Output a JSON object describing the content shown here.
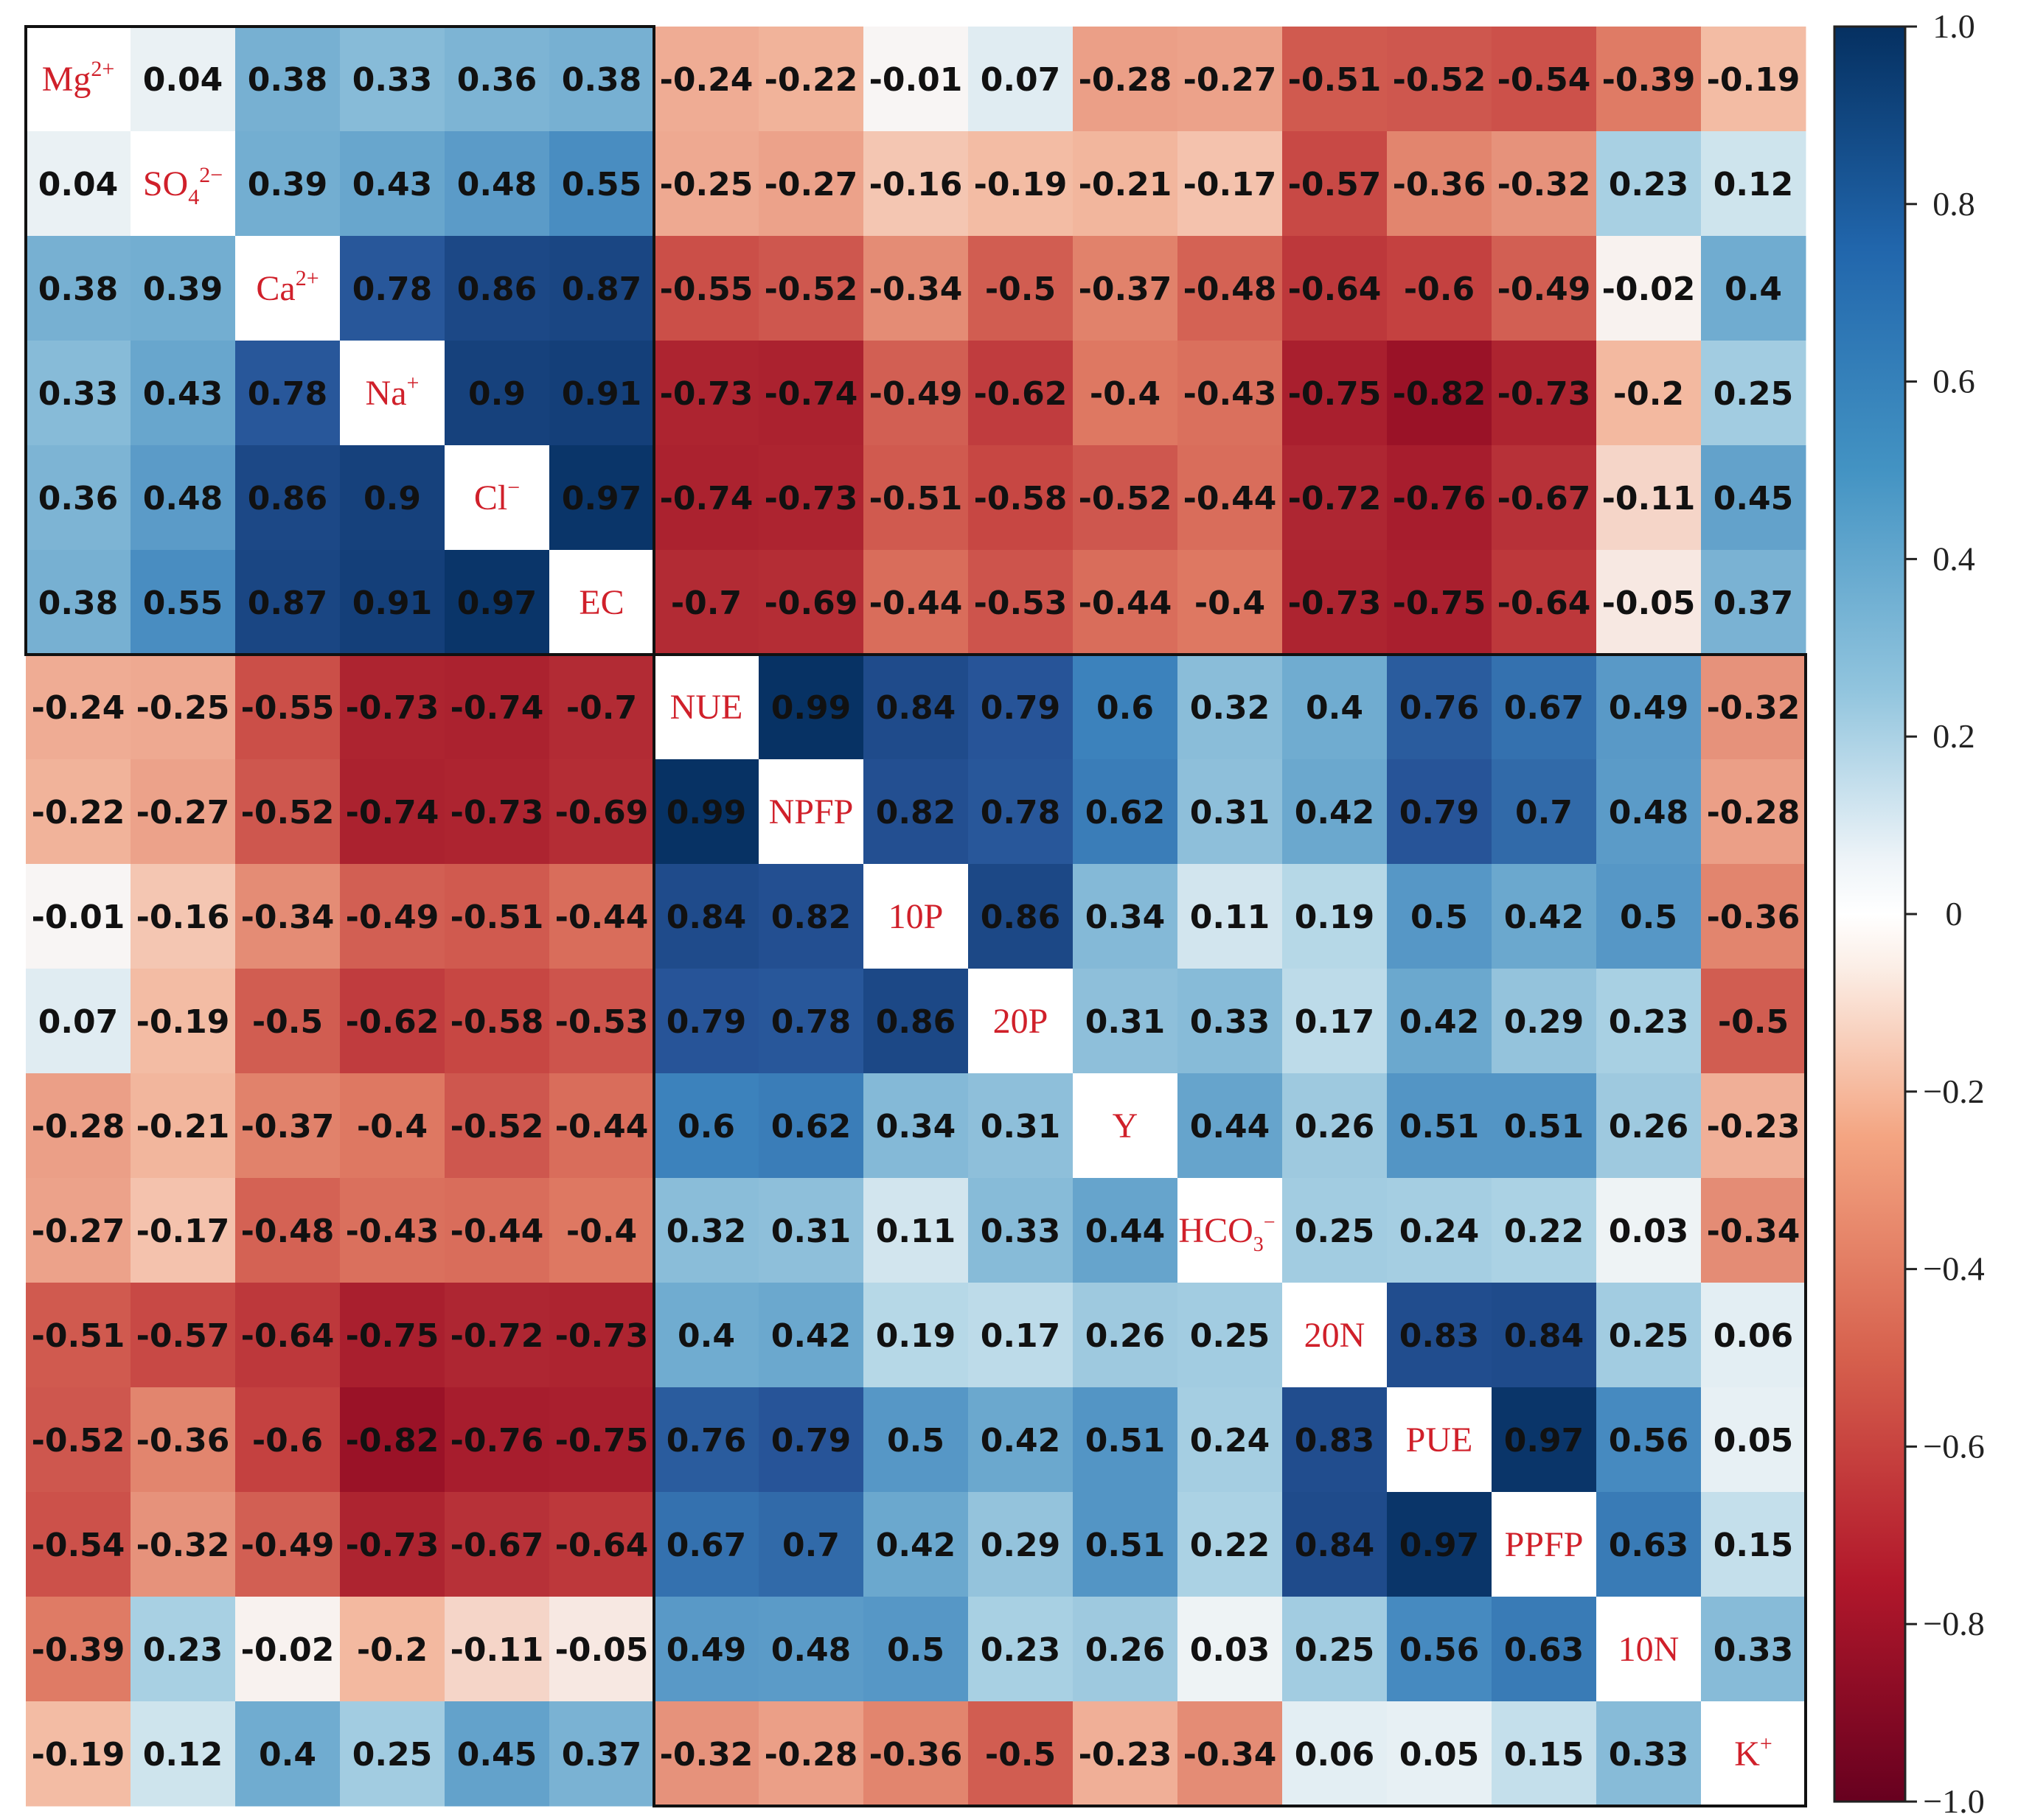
{
  "chart_data": {
    "type": "heatmap",
    "variables": [
      "Mg2+",
      "SO42-",
      "Ca2+",
      "Na+",
      "Cl-",
      "EC",
      "NUE",
      "NPFP",
      "10P",
      "20P",
      "Y",
      "HCO3-",
      "20N",
      "PUE",
      "PPFP",
      "10N",
      "K+"
    ],
    "matrix": [
      [
        null,
        0.04,
        0.38,
        0.33,
        0.36,
        0.38,
        -0.24,
        -0.22,
        -0.01,
        0.07,
        -0.28,
        -0.27,
        -0.51,
        -0.52,
        -0.54,
        -0.39,
        -0.19
      ],
      [
        0.04,
        null,
        0.39,
        0.43,
        0.48,
        0.55,
        -0.25,
        -0.27,
        -0.16,
        -0.19,
        -0.21,
        -0.17,
        -0.57,
        -0.36,
        -0.32,
        0.23,
        0.12
      ],
      [
        0.38,
        0.39,
        null,
        0.78,
        0.86,
        0.87,
        -0.55,
        -0.52,
        -0.34,
        -0.5,
        -0.37,
        -0.48,
        -0.64,
        -0.6,
        -0.49,
        -0.02,
        0.4
      ],
      [
        0.33,
        0.43,
        0.78,
        null,
        0.9,
        0.91,
        -0.73,
        -0.74,
        -0.49,
        -0.62,
        -0.4,
        -0.43,
        -0.75,
        -0.82,
        -0.73,
        -0.2,
        0.25
      ],
      [
        0.36,
        0.48,
        0.86,
        0.9,
        null,
        0.97,
        -0.74,
        -0.73,
        -0.51,
        -0.58,
        -0.52,
        -0.44,
        -0.72,
        -0.76,
        -0.67,
        -0.11,
        0.45
      ],
      [
        0.38,
        0.55,
        0.87,
        0.91,
        0.97,
        null,
        -0.7,
        -0.69,
        -0.44,
        -0.53,
        -0.44,
        -0.4,
        -0.73,
        -0.75,
        -0.64,
        -0.05,
        0.37
      ],
      [
        -0.24,
        -0.25,
        -0.55,
        -0.73,
        -0.74,
        -0.7,
        null,
        0.99,
        0.84,
        0.79,
        0.6,
        0.32,
        0.4,
        0.76,
        0.67,
        0.49,
        -0.32
      ],
      [
        -0.22,
        -0.27,
        -0.52,
        -0.74,
        -0.73,
        -0.69,
        0.99,
        null,
        0.82,
        0.78,
        0.62,
        0.31,
        0.42,
        0.79,
        0.7,
        0.48,
        -0.28
      ],
      [
        -0.01,
        -0.16,
        -0.34,
        -0.49,
        -0.51,
        -0.44,
        0.84,
        0.82,
        null,
        0.86,
        0.34,
        0.11,
        0.19,
        0.5,
        0.42,
        0.5,
        -0.36
      ],
      [
        0.07,
        -0.19,
        -0.5,
        -0.62,
        -0.58,
        -0.53,
        0.79,
        0.78,
        0.86,
        null,
        0.31,
        0.33,
        0.17,
        0.42,
        0.29,
        0.23,
        -0.5
      ],
      [
        -0.28,
        -0.21,
        -0.37,
        -0.4,
        -0.52,
        -0.44,
        0.6,
        0.62,
        0.34,
        0.31,
        null,
        0.44,
        0.26,
        0.51,
        0.51,
        0.26,
        -0.23
      ],
      [
        -0.27,
        -0.17,
        -0.48,
        -0.43,
        -0.44,
        -0.4,
        0.32,
        0.31,
        0.11,
        0.33,
        0.44,
        null,
        0.25,
        0.24,
        0.22,
        0.03,
        -0.34
      ],
      [
        -0.51,
        -0.57,
        -0.64,
        -0.75,
        -0.72,
        -0.73,
        0.4,
        0.42,
        0.19,
        0.17,
        0.26,
        0.25,
        null,
        0.83,
        0.84,
        0.25,
        0.06
      ],
      [
        -0.52,
        -0.36,
        -0.6,
        -0.82,
        -0.76,
        -0.75,
        0.76,
        0.79,
        0.5,
        0.42,
        0.51,
        0.24,
        0.83,
        null,
        0.97,
        0.56,
        0.05
      ],
      [
        -0.54,
        -0.32,
        -0.49,
        -0.73,
        -0.67,
        -0.64,
        0.67,
        0.7,
        0.42,
        0.29,
        0.51,
        0.22,
        0.84,
        0.97,
        null,
        0.63,
        0.15
      ],
      [
        -0.39,
        0.23,
        -0.02,
        -0.2,
        -0.11,
        -0.05,
        0.49,
        0.48,
        0.5,
        0.23,
        0.26,
        0.03,
        0.25,
        0.56,
        0.63,
        null,
        0.33
      ],
      [
        -0.19,
        0.12,
        0.4,
        0.25,
        0.45,
        0.37,
        -0.32,
        -0.28,
        -0.36,
        -0.5,
        -0.23,
        -0.34,
        0.06,
        0.05,
        0.15,
        0.33,
        null
      ]
    ],
    "colorbar": {
      "range": [
        -1.0,
        1.0
      ],
      "ticks": [
        "1.0",
        "0.8",
        "0.6",
        "0.4",
        "0.2",
        "0",
        "−0.2",
        "−0.4",
        "−0.6",
        "−0.8",
        "−1.0"
      ],
      "colors": {
        "negative_max": "#67001f",
        "negative_mid": "#d6604d",
        "zero": "#f7f7f7",
        "positive_mid": "#4393c3",
        "positive_max": "#053061"
      }
    },
    "clusters": [
      {
        "members": [
          "Mg2+",
          "SO42-",
          "Ca2+",
          "Na+",
          "Cl-",
          "EC"
        ]
      },
      {
        "members": [
          "NUE",
          "NPFP",
          "10P",
          "20P",
          "Y",
          "HCO3-",
          "20N",
          "PUE",
          "PPFP",
          "10N",
          "K+"
        ]
      }
    ],
    "title": "",
    "xlabel": "",
    "ylabel": ""
  },
  "labels": {
    "mg": {
      "base": "Mg",
      "sup": "2+"
    },
    "so4": {
      "base": "SO",
      "sub": "4",
      "sup": "2−"
    },
    "ca": {
      "base": "Ca",
      "sup": "2+"
    },
    "na": {
      "base": "Na",
      "sup": "+"
    },
    "cl": {
      "base": "Cl",
      "sup": "−"
    },
    "ec": "EC",
    "nue": "NUE",
    "npfp": "NPFP",
    "p10": "10P",
    "p20": "20P",
    "y": "Y",
    "hco3": {
      "base": "HCO",
      "sub": "3",
      "sup": "−"
    },
    "n20": "20N",
    "pue": "PUE",
    "ppfp": "PPFP",
    "n10": "10N",
    "k": {
      "base": "K",
      "sup": "+"
    }
  }
}
